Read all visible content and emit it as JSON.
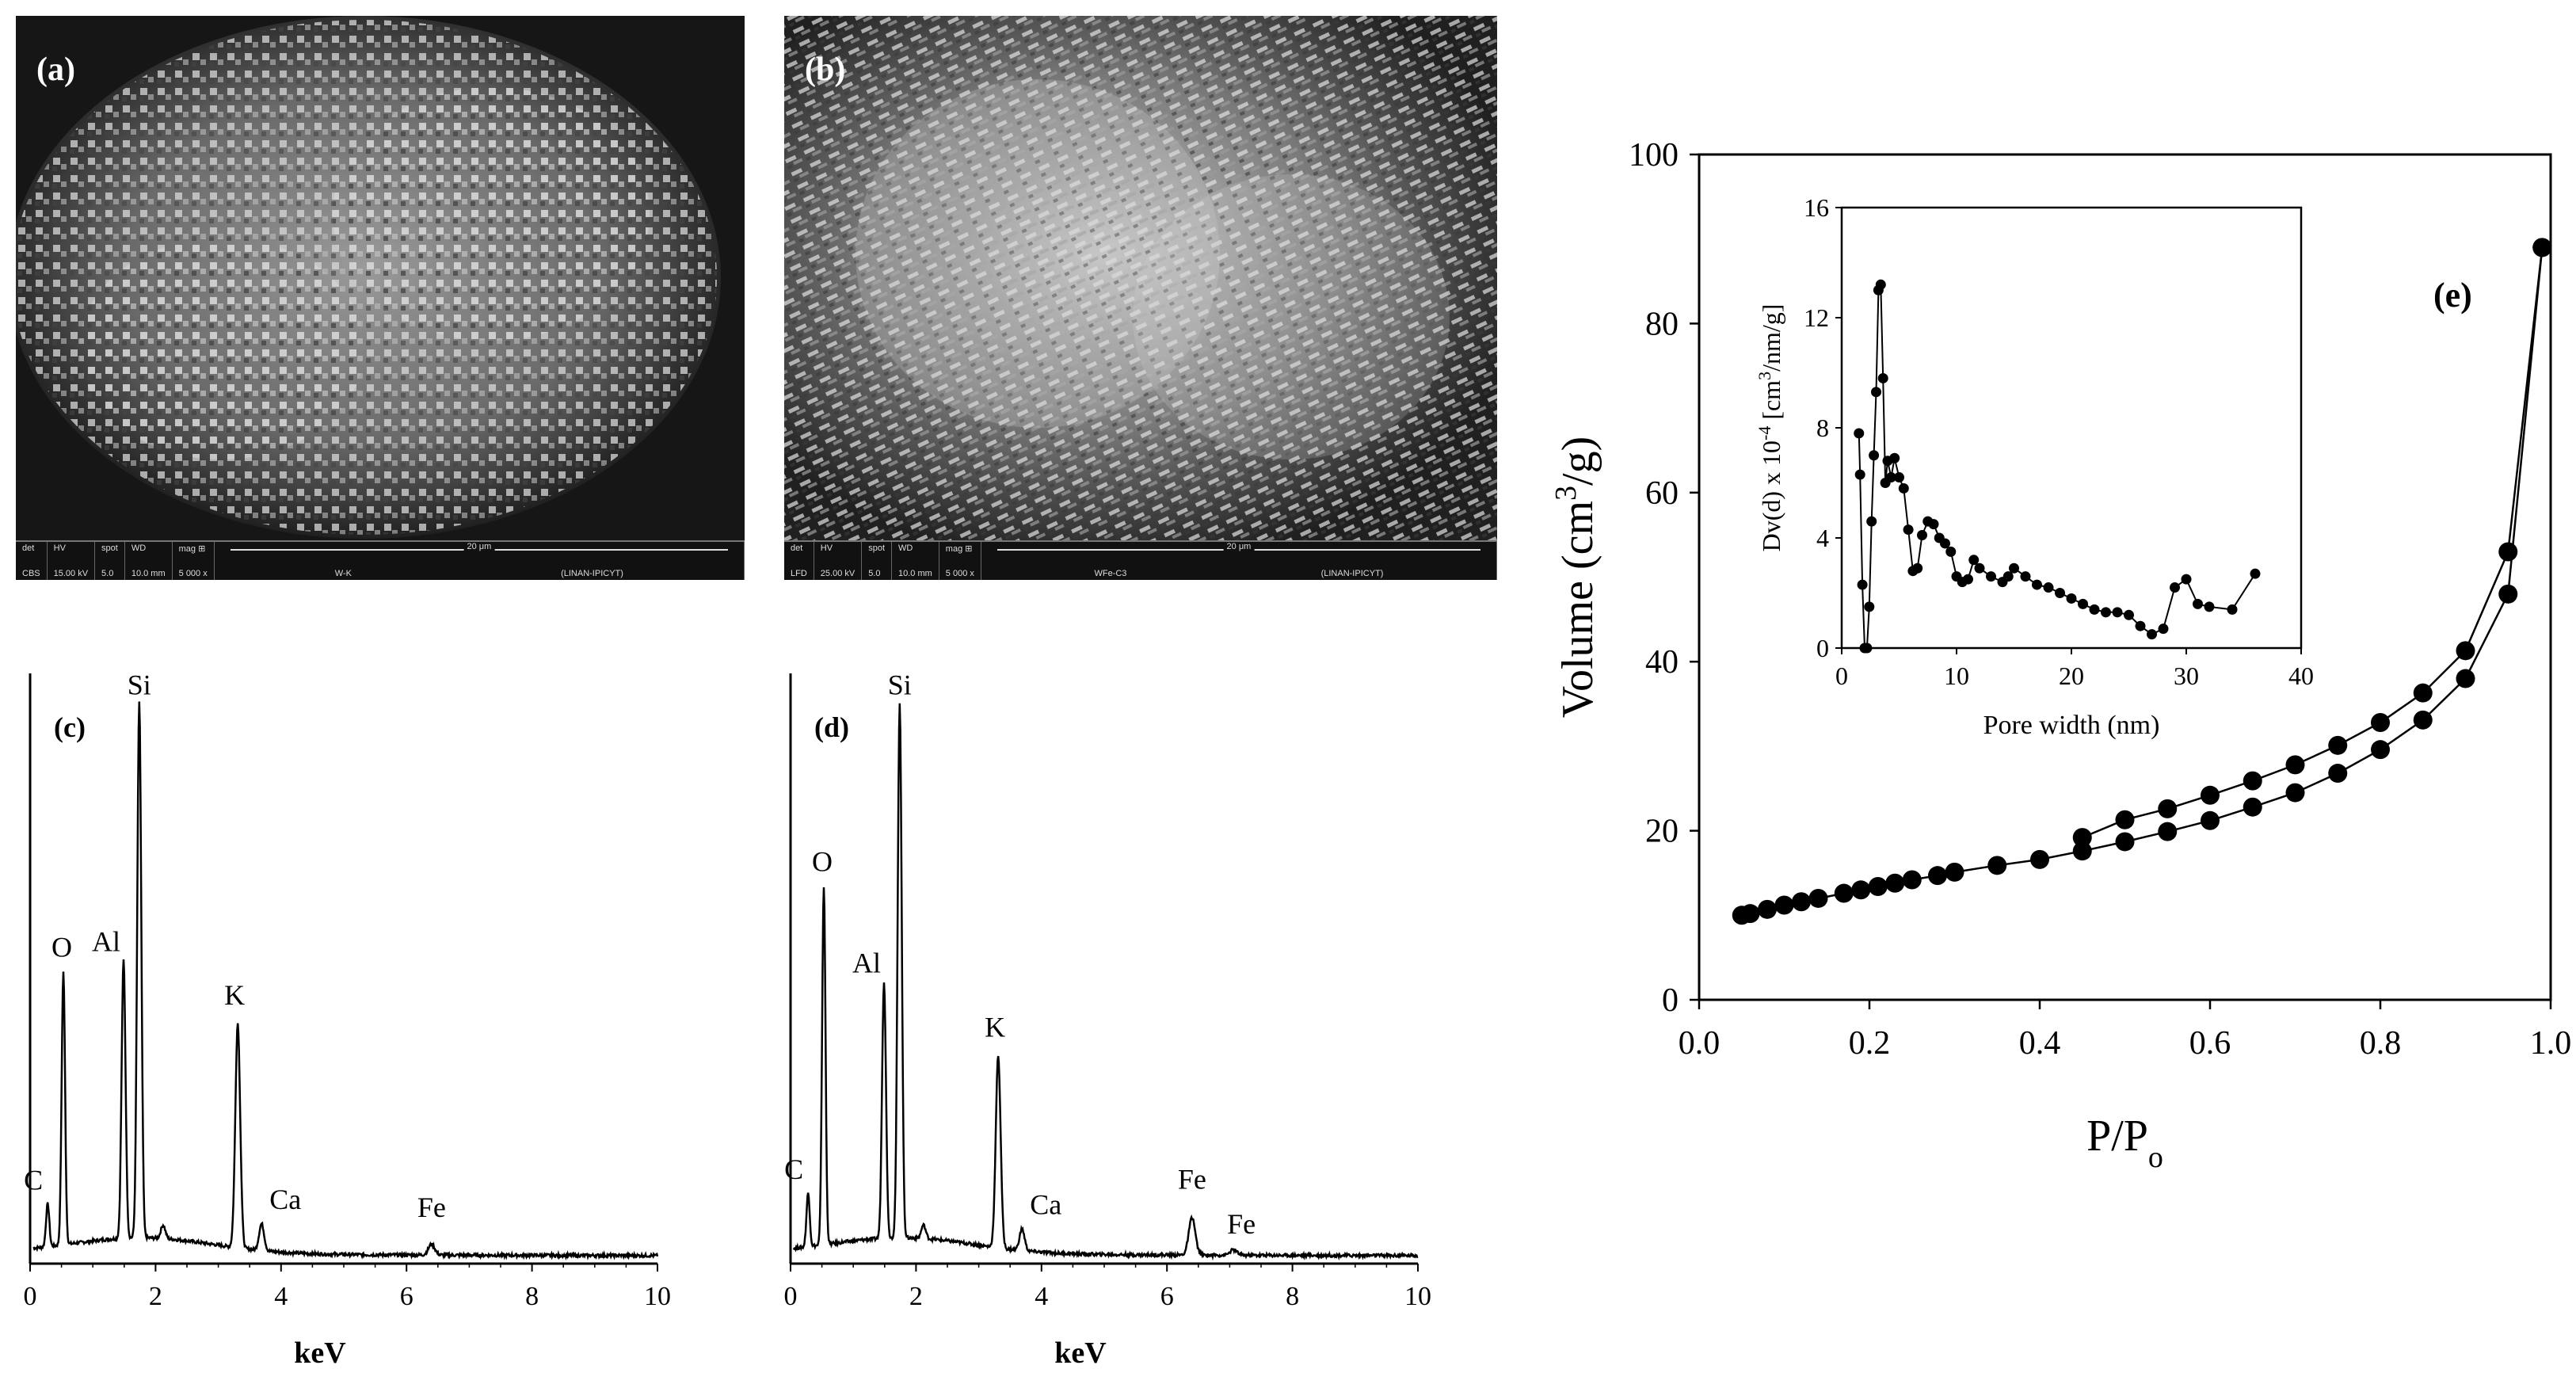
{
  "panels": {
    "a": {
      "label": "(a)",
      "meta_headers": [
        "det",
        "HV",
        "spot",
        "WD",
        "mag ⊞"
      ],
      "meta_values": [
        "CBS",
        "15.00 kV",
        "5.0",
        "10.0 mm",
        "5 000 x"
      ],
      "scale": "20 μm",
      "sample": "W-K",
      "lab": "(LINAN-IPICYT)"
    },
    "b": {
      "label": "(b)",
      "meta_headers": [
        "det",
        "HV",
        "spot",
        "WD",
        "mag ⊞"
      ],
      "meta_values": [
        "LFD",
        "25.00 kV",
        "5.0",
        "10.0 mm",
        "5 000 x"
      ],
      "scale": "20 μm",
      "sample": "WFe-C3",
      "lab": "(LINAN-IPICYT)"
    }
  },
  "chart_data": [
    {
      "type": "line",
      "panel_label": "(c)",
      "xlabel": "keV",
      "ylabel": "",
      "xlim": [
        0,
        10
      ],
      "xticks": [
        0,
        2,
        4,
        6,
        8,
        10
      ],
      "ylim": [
        0,
        1
      ],
      "peaks": [
        {
          "element": "C",
          "kev": 0.28,
          "height": 0.08
        },
        {
          "element": "O",
          "kev": 0.53,
          "height": 0.51
        },
        {
          "element": "Al",
          "kev": 1.49,
          "height": 0.52
        },
        {
          "element": "Si",
          "kev": 1.74,
          "height": 1.0
        },
        {
          "element": "K",
          "kev": 3.31,
          "height": 0.42
        },
        {
          "element": "Ca",
          "kev": 3.69,
          "height": 0.05
        },
        {
          "element": "Fe",
          "kev": 6.4,
          "height": 0.02
        }
      ]
    },
    {
      "type": "line",
      "panel_label": "(d)",
      "xlabel": "keV",
      "ylabel": "",
      "xlim": [
        0,
        10
      ],
      "xticks": [
        0,
        2,
        4,
        6,
        8,
        10
      ],
      "ylim": [
        0,
        1
      ],
      "peaks": [
        {
          "element": "C",
          "kev": 0.28,
          "height": 0.1
        },
        {
          "element": "O",
          "kev": 0.53,
          "height": 0.67
        },
        {
          "element": "Al",
          "kev": 1.49,
          "height": 0.48
        },
        {
          "element": "Si",
          "kev": 1.74,
          "height": 1.0
        },
        {
          "element": "K",
          "kev": 3.31,
          "height": 0.36
        },
        {
          "element": "Ca",
          "kev": 3.69,
          "height": 0.04
        },
        {
          "element": "Fe",
          "kev": 6.4,
          "height": 0.07
        },
        {
          "element": "Fe",
          "kev": 7.06,
          "height": 0.01
        }
      ]
    },
    {
      "type": "line",
      "panel_label": "(e)",
      "xlabel": "P/P",
      "xlabel_sub": "o",
      "ylabel": "Volume (cm",
      "ylabel_sup": "3",
      "ylabel_tail": "/g)",
      "xlim": [
        0.0,
        1.0
      ],
      "ylim": [
        0,
        100
      ],
      "xticks": [
        "0.0",
        "0.2",
        "0.4",
        "0.6",
        "0.8",
        "1.0"
      ],
      "yticks": [
        "0",
        "20",
        "40",
        "60",
        "80",
        "100"
      ],
      "series": [
        {
          "x": [
            0.05,
            0.06,
            0.08,
            0.1,
            0.12,
            0.14,
            0.17,
            0.19,
            0.21,
            0.23,
            0.25,
            0.28,
            0.3,
            0.35,
            0.4,
            0.45,
            0.5,
            0.55,
            0.6,
            0.65,
            0.7,
            0.75,
            0.8,
            0.85,
            0.9,
            0.95,
            0.99
          ],
          "y": [
            10.0,
            10.2,
            10.7,
            11.2,
            11.6,
            12.0,
            12.6,
            13.0,
            13.4,
            13.8,
            14.2,
            14.7,
            15.1,
            15.9,
            16.6,
            17.6,
            18.7,
            19.9,
            21.2,
            22.8,
            24.5,
            26.8,
            29.6,
            33.1,
            38.0,
            48.0,
            89.0
          ]
        },
        {
          "x": [
            0.99,
            0.95,
            0.9,
            0.85,
            0.8,
            0.75,
            0.7,
            0.65,
            0.6,
            0.55,
            0.5,
            0.45
          ],
          "y": [
            89.0,
            53.0,
            41.3,
            36.3,
            32.8,
            30.1,
            27.8,
            25.9,
            24.2,
            22.6,
            21.3,
            19.2
          ]
        }
      ],
      "inset": {
        "type": "line",
        "xlabel": "Pore width (nm)",
        "ylabel": "Dv(d) x 10",
        "ylabel_sup": "-4",
        "ylabel_tail": " [cm",
        "ylabel_sup2": "3",
        "ylabel_tail2": "/nm/g]",
        "xlim": [
          0,
          40
        ],
        "ylim": [
          0,
          16
        ],
        "xticks": [
          "0",
          "10",
          "20",
          "30",
          "40"
        ],
        "yticks": [
          "0",
          "4",
          "8",
          "12",
          "16"
        ],
        "x": [
          1.5,
          1.6,
          1.8,
          2.0,
          2.2,
          2.4,
          2.6,
          2.8,
          3.0,
          3.2,
          3.4,
          3.6,
          3.8,
          4.0,
          4.3,
          4.6,
          5.0,
          5.4,
          5.8,
          6.2,
          6.6,
          7.0,
          7.5,
          8.0,
          8.5,
          9.0,
          9.5,
          10.0,
          10.5,
          11.0,
          11.5,
          12.0,
          13.0,
          14.0,
          14.5,
          15.0,
          16.0,
          17.0,
          18.0,
          19.0,
          20.0,
          21.0,
          22.0,
          23.0,
          24.0,
          25.0,
          26.0,
          27.0,
          28.0,
          29.0,
          30.0,
          31.0,
          32.0,
          34.0,
          36.0
        ],
        "y": [
          7.8,
          6.3,
          2.3,
          0.0,
          0.0,
          1.5,
          4.6,
          7.0,
          9.3,
          13.0,
          13.2,
          9.8,
          6.0,
          6.8,
          6.2,
          6.9,
          6.2,
          5.8,
          4.3,
          2.8,
          2.9,
          4.1,
          4.6,
          4.5,
          4.0,
          3.8,
          3.5,
          2.6,
          2.4,
          2.5,
          3.2,
          2.9,
          2.6,
          2.4,
          2.6,
          2.9,
          2.6,
          2.3,
          2.2,
          2.0,
          1.8,
          1.6,
          1.4,
          1.3,
          1.3,
          1.2,
          0.8,
          0.5,
          0.7,
          2.2,
          2.5,
          1.6,
          1.5,
          1.4,
          2.7
        ]
      }
    }
  ]
}
